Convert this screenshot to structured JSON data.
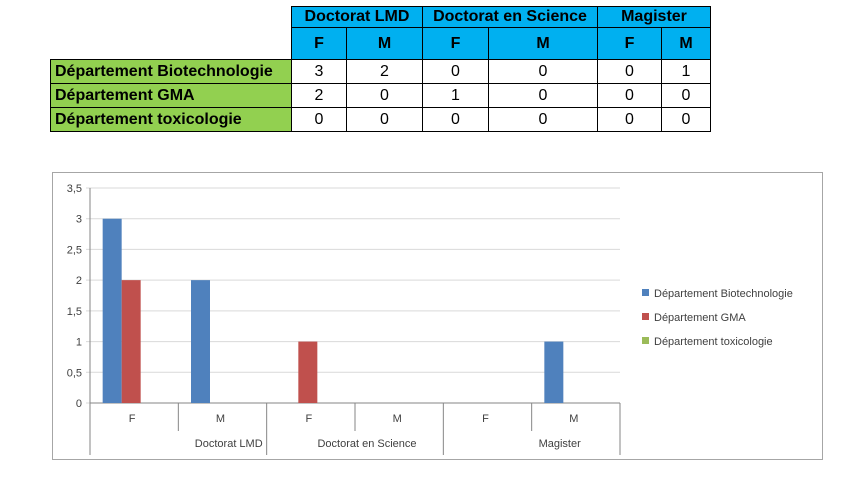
{
  "table": {
    "groups": [
      "Doctorat LMD",
      "Doctorat en Science",
      "Magister"
    ],
    "subheaders": [
      "F",
      "M",
      "F",
      "M",
      "F",
      "M"
    ],
    "rows": [
      {
        "label": "Département Biotechnologie",
        "values": [
          "3",
          "2",
          "0",
          "0",
          "0",
          "1"
        ]
      },
      {
        "label": "Département GMA",
        "values": [
          "2",
          "0",
          "1",
          "0",
          "0",
          "0"
        ]
      },
      {
        "label": "Département toxicologie",
        "values": [
          "0",
          "0",
          "0",
          "0",
          "0",
          "0"
        ]
      }
    ],
    "colors": {
      "header": "#00b0f0",
      "row_label": "#92d050"
    }
  },
  "chart_data": {
    "type": "bar",
    "categories": [
      "F",
      "M",
      "F",
      "M",
      "F",
      "M"
    ],
    "category_groups": [
      "Doctorat LMD",
      "Doctorat en Science",
      "Magister"
    ],
    "series": [
      {
        "name": "Département Biotechnologie",
        "color": "#4f81bd",
        "values": [
          3,
          2,
          0,
          0,
          0,
          1
        ]
      },
      {
        "name": "Département GMA",
        "color": "#c0504d",
        "values": [
          2,
          0,
          1,
          0,
          0,
          0
        ]
      },
      {
        "name": "Département toxicologie",
        "color": "#9bbb59",
        "values": [
          0,
          0,
          0,
          0,
          0,
          0
        ]
      }
    ],
    "ylim": [
      0,
      3.5
    ],
    "yticks": [
      "0",
      "0,5",
      "1",
      "1,5",
      "2",
      "2,5",
      "3",
      "3,5"
    ],
    "grid": true,
    "legend": "right"
  }
}
